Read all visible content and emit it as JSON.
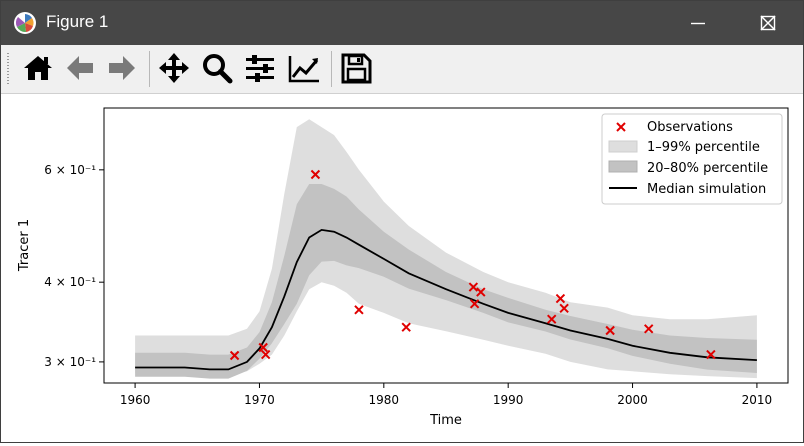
{
  "window": {
    "title": "Figure 1"
  },
  "toolbar": {
    "items": [
      {
        "name": "home",
        "icon": "home-icon"
      },
      {
        "name": "back",
        "icon": "arrow-left-icon"
      },
      {
        "name": "forward",
        "icon": "arrow-right-icon"
      },
      {
        "name": "pan",
        "icon": "move-icon"
      },
      {
        "name": "zoom",
        "icon": "zoom-icon"
      },
      {
        "name": "subplots",
        "icon": "sliders-icon"
      },
      {
        "name": "axes",
        "icon": "line-chart-icon"
      },
      {
        "name": "save",
        "icon": "save-icon"
      }
    ]
  },
  "chart_data": {
    "type": "line",
    "title": "",
    "xlabel": "Time",
    "ylabel": "Tracer 1",
    "xlim": [
      1957.5,
      2002.5
    ],
    "ylim": [
      0.278,
      0.75
    ],
    "yscale": "log",
    "xticks": [
      1960,
      1970,
      1980,
      1990,
      2000,
      2010
    ],
    "yticks": [
      {
        "value": 0.3,
        "label": "3 × 10⁻¹"
      },
      {
        "value": 0.4,
        "label": "4 × 10⁻¹"
      },
      {
        "value": 0.6,
        "label": "6 × 10⁻¹"
      }
    ],
    "grid": false,
    "legend_position": "top-right",
    "legend": {
      "observations": "Observations",
      "band_outer": "1–99% percentile",
      "band_inner": "20–80% percentile",
      "median": "Median simulation"
    },
    "colors": {
      "observations": "#e00000",
      "band_outer": "#dedede",
      "band_inner": "#c2c2c2",
      "median": "#000000"
    },
    "median": {
      "x": [
        1960,
        1964,
        1966,
        1967.5,
        1969,
        1970,
        1971,
        1972,
        1973,
        1974,
        1975,
        1976,
        1977,
        1978,
        1980,
        1982,
        1985,
        1988,
        1990,
        1993,
        1995,
        1998,
        2000,
        2003,
        2006,
        2010
      ],
      "y": [
        0.294,
        0.294,
        0.292,
        0.292,
        0.3,
        0.315,
        0.34,
        0.38,
        0.43,
        0.47,
        0.483,
        0.48,
        0.47,
        0.458,
        0.435,
        0.413,
        0.39,
        0.37,
        0.358,
        0.345,
        0.336,
        0.326,
        0.318,
        0.31,
        0.305,
        0.302
      ]
    },
    "band_outer": {
      "x": [
        1960,
        1964,
        1966,
        1967.5,
        1969,
        1970,
        1971,
        1972,
        1973,
        1974,
        1975,
        1976,
        1977,
        1978,
        1980,
        1982,
        1985,
        1988,
        1990,
        1993,
        1995,
        1998,
        2000,
        2003,
        2006,
        2010
      ],
      "upper": [
        0.33,
        0.33,
        0.33,
        0.33,
        0.338,
        0.36,
        0.42,
        0.55,
        0.7,
        0.72,
        0.7,
        0.68,
        0.64,
        0.6,
        0.535,
        0.49,
        0.445,
        0.415,
        0.4,
        0.385,
        0.372,
        0.365,
        0.355,
        0.35,
        0.35,
        0.355
      ],
      "lower": [
        0.288,
        0.288,
        0.285,
        0.286,
        0.29,
        0.298,
        0.308,
        0.33,
        0.36,
        0.39,
        0.4,
        0.395,
        0.385,
        0.37,
        0.358,
        0.345,
        0.335,
        0.325,
        0.318,
        0.309,
        0.3,
        0.292,
        0.29,
        0.287,
        0.285,
        0.283
      ]
    },
    "band_inner": {
      "x": [
        1960,
        1964,
        1966,
        1967.5,
        1969,
        1970,
        1971,
        1972,
        1973,
        1974,
        1975,
        1976,
        1977,
        1978,
        1980,
        1982,
        1985,
        1988,
        1990,
        1993,
        1995,
        1998,
        2000,
        2003,
        2006,
        2010
      ],
      "upper": [
        0.31,
        0.31,
        0.308,
        0.308,
        0.316,
        0.334,
        0.372,
        0.44,
        0.53,
        0.57,
        0.57,
        0.56,
        0.545,
        0.52,
        0.48,
        0.45,
        0.415,
        0.39,
        0.378,
        0.362,
        0.354,
        0.344,
        0.337,
        0.33,
        0.327,
        0.325
      ]
    },
    "observations": {
      "x": [
        1968,
        1970.3,
        1970.5,
        1974.5,
        1978,
        1981.8,
        1987.2,
        1987.3,
        1987.8,
        1993.5,
        1994.2,
        1994.5,
        1998.2,
        2001.3,
        2006.3
      ],
      "y": [
        0.307,
        0.316,
        0.308,
        0.59,
        0.362,
        0.34,
        0.393,
        0.37,
        0.386,
        0.35,
        0.377,
        0.364,
        0.336,
        0.338,
        0.308
      ]
    }
  }
}
